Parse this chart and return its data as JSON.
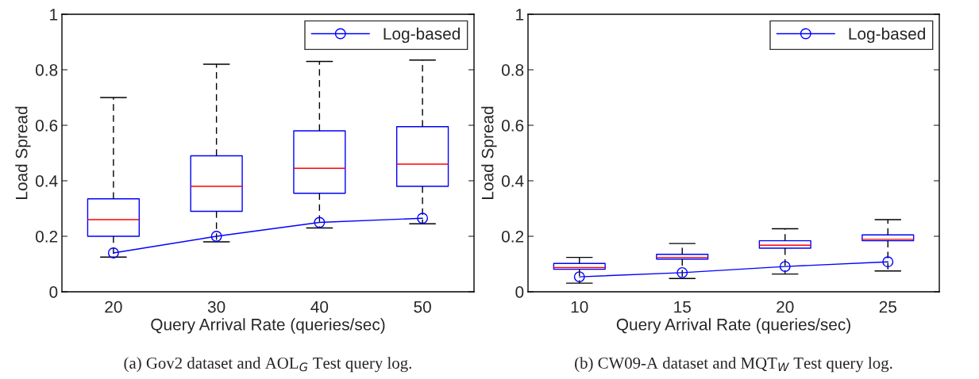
{
  "chart_data": [
    {
      "type": "box",
      "title": "(a) Gov2 dataset and AOL$_{G}$ Test query log.",
      "xlabel": "Query Arrival Rate (queries/sec)",
      "ylabel": "Load Spread",
      "categories": [
        "20",
        "30",
        "40",
        "50"
      ],
      "boxes": [
        {
          "low": 0.125,
          "q1": 0.2,
          "median": 0.26,
          "q3": 0.335,
          "high": 0.7
        },
        {
          "low": 0.18,
          "q1": 0.29,
          "median": 0.38,
          "q3": 0.49,
          "high": 0.82
        },
        {
          "low": 0.23,
          "q1": 0.355,
          "median": 0.445,
          "q3": 0.58,
          "high": 0.83
        },
        {
          "low": 0.245,
          "q1": 0.38,
          "median": 0.46,
          "q3": 0.595,
          "high": 0.835
        }
      ],
      "series": [
        {
          "name": "Log-based",
          "type": "line",
          "color": "#0000ff",
          "x": [
            "20",
            "30",
            "40",
            "50"
          ],
          "values": [
            0.14,
            0.2,
            0.25,
            0.265
          ]
        }
      ],
      "marker": "circle",
      "legend": "top right",
      "grid": false,
      "ylim": [
        0,
        1
      ],
      "yticks": [
        0,
        0.2,
        0.4,
        0.6,
        0.8,
        1
      ]
    },
    {
      "type": "box",
      "title": "(b) CW09-A dataset and MQT$_{W}$ Test query log.",
      "xlabel": "Query Arrival Rate (queries/sec)",
      "ylabel": "Load Spread",
      "categories": [
        "10",
        "15",
        "20",
        "25"
      ],
      "boxes": [
        {
          "low": 0.031,
          "q1": 0.081,
          "median": 0.087,
          "q3": 0.102,
          "high": 0.124
        },
        {
          "low": 0.048,
          "q1": 0.118,
          "median": 0.124,
          "q3": 0.135,
          "high": 0.174
        },
        {
          "low": 0.064,
          "q1": 0.157,
          "median": 0.168,
          "q3": 0.184,
          "high": 0.227
        },
        {
          "low": 0.075,
          "q1": 0.184,
          "median": 0.189,
          "q3": 0.205,
          "high": 0.26
        }
      ],
      "series": [
        {
          "name": "Log-based",
          "type": "line",
          "color": "#0000ff",
          "x": [
            "10",
            "15",
            "20",
            "25"
          ],
          "values": [
            0.054,
            0.069,
            0.091,
            0.108
          ]
        }
      ],
      "marker": "circle",
      "legend": "top right",
      "grid": false,
      "ylim": [
        0,
        1
      ],
      "yticks": [
        0,
        0.2,
        0.4,
        0.6,
        0.8,
        1
      ]
    }
  ]
}
